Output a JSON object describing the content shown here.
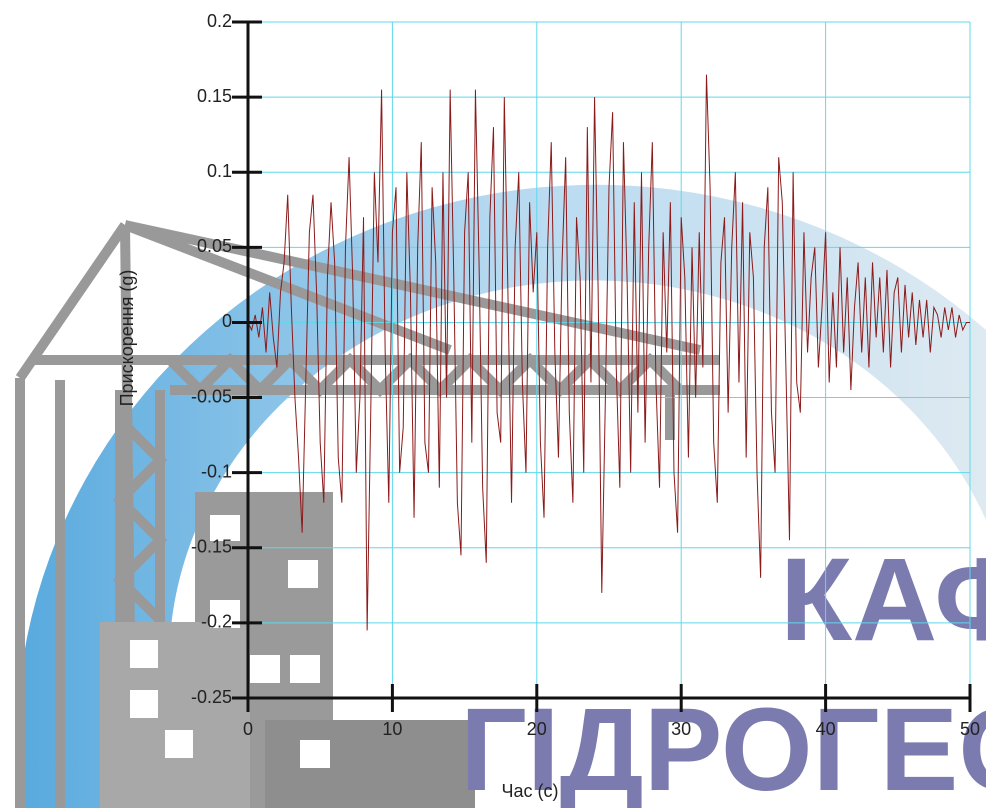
{
  "chart_data": {
    "type": "line",
    "xlabel": "Час (с)",
    "ylabel": "Прискорення (g)",
    "x": [
      0,
      0.25,
      0.5,
      0.75,
      1,
      1.25,
      1.5,
      1.75,
      2,
      2.25,
      2.5,
      2.75,
      3,
      3.25,
      3.5,
      3.75,
      4,
      4.25,
      4.5,
      4.75,
      5,
      5.25,
      5.5,
      5.75,
      6,
      6.25,
      6.5,
      6.75,
      7,
      7.25,
      7.5,
      7.75,
      8,
      8.25,
      8.5,
      8.75,
      9,
      9.25,
      9.5,
      9.75,
      10,
      10.25,
      10.5,
      10.75,
      11,
      11.25,
      11.5,
      11.75,
      12,
      12.25,
      12.5,
      12.75,
      13,
      13.25,
      13.5,
      13.75,
      14,
      14.25,
      14.5,
      14.75,
      15,
      15.25,
      15.5,
      15.75,
      16,
      16.25,
      16.5,
      16.75,
      17,
      17.25,
      17.5,
      17.75,
      18,
      18.25,
      18.5,
      18.75,
      19,
      19.25,
      19.5,
      19.75,
      20,
      20.25,
      20.5,
      20.75,
      21,
      21.25,
      21.5,
      21.75,
      22,
      22.25,
      22.5,
      22.75,
      23,
      23.25,
      23.5,
      23.75,
      24,
      24.25,
      24.5,
      24.75,
      25,
      25.25,
      25.5,
      25.75,
      26,
      26.25,
      26.5,
      26.75,
      27,
      27.25,
      27.5,
      27.75,
      28,
      28.25,
      28.5,
      28.75,
      29,
      29.25,
      29.5,
      29.75,
      30,
      30.25,
      30.5,
      30.75,
      31,
      31.25,
      31.5,
      31.75,
      32,
      32.25,
      32.5,
      32.75,
      33,
      33.25,
      33.5,
      33.75,
      34,
      34.25,
      34.5,
      34.75,
      35,
      35.25,
      35.5,
      35.75,
      36,
      36.25,
      36.5,
      36.75,
      37,
      37.25,
      37.5,
      37.75,
      38,
      38.25,
      38.5,
      38.75,
      39,
      39.25,
      39.5,
      39.75,
      40,
      40.25,
      40.5,
      40.75,
      41,
      41.25,
      41.5,
      41.75,
      42,
      42.25,
      42.5,
      42.75,
      43,
      43.25,
      43.5,
      43.75,
      44,
      44.25,
      44.5,
      44.75,
      45,
      45.25,
      45.5,
      45.75,
      46,
      46.25,
      46.5,
      46.75,
      47,
      47.25,
      47.5,
      47.75,
      48,
      48.25,
      48.5,
      48.75,
      49,
      49.25,
      49.5,
      49.75,
      50
    ],
    "values": [
      0,
      -0.005,
      0.005,
      -0.01,
      0.01,
      -0.02,
      0.02,
      -0.01,
      -0.03,
      0.02,
      0.04,
      0.085,
      0.01,
      -0.05,
      -0.09,
      -0.14,
      -0.04,
      0.06,
      0.085,
      0.02,
      -0.08,
      -0.12,
      0.03,
      0.08,
      0.04,
      -0.09,
      -0.12,
      0.05,
      0.11,
      0.03,
      -0.1,
      -0.05,
      0.07,
      -0.205,
      -0.06,
      0.1,
      0.04,
      0.155,
      -0.02,
      -0.12,
      0.06,
      0.09,
      -0.1,
      -0.07,
      0.1,
      0.02,
      -0.13,
      0.05,
      0.12,
      -0.08,
      -0.1,
      0.09,
      0.04,
      -0.11,
      0.1,
      -0.05,
      0.155,
      0.03,
      -0.12,
      -0.155,
      0.06,
      0.1,
      -0.08,
      0.155,
      0.04,
      -0.11,
      -0.16,
      0.07,
      0.13,
      -0.06,
      -0.08,
      0.15,
      0.02,
      -0.12,
      0.05,
      0.1,
      -0.04,
      -0.1,
      0.08,
      0.02,
      0.06,
      -0.08,
      -0.13,
      0.05,
      0.12,
      -0.02,
      -0.09,
      0.04,
      0.11,
      -0.06,
      -0.12,
      0.07,
      0.03,
      -0.1,
      0.13,
      -0.04,
      0.15,
      0.02,
      -0.18,
      -0.05,
      0.09,
      0.14,
      -0.03,
      -0.11,
      0.12,
      0.03,
      -0.1,
      0.08,
      -0.06,
      0.1,
      -0.08,
      0.05,
      0.12,
      -0.04,
      -0.11,
      0.06,
      -0.02,
      0.08,
      -0.1,
      -0.14,
      0.07,
      0.03,
      -0.09,
      0.05,
      -0.05,
      0.06,
      -0.03,
      0.165,
      0.09,
      -0.08,
      -0.12,
      0.04,
      0.07,
      -0.06,
      0.05,
      0.1,
      -0.04,
      0.08,
      -0.09,
      0.06,
      0.03,
      -0.1,
      -0.17,
      0.05,
      0.09,
      -0.06,
      -0.1,
      0.11,
      0.08,
      -0.03,
      -0.145,
      0.1,
      -0.04,
      -0.06,
      0.06,
      -0.02,
      0.03,
      0.05,
      -0.03,
      0.01,
      0.06,
      -0.04,
      0.02,
      -0.03,
      0.05,
      -0.02,
      0.03,
      -0.045,
      0.01,
      0.04,
      -0.02,
      0.03,
      -0.03,
      0.04,
      -0.01,
      0.03,
      -0.02,
      0.035,
      -0.03,
      0.02,
      0.03,
      -0.02,
      0.025,
      -0.01,
      0.02,
      -0.015,
      0.015,
      -0.01,
      0.015,
      -0.02,
      0.01,
      0.005,
      -0.01,
      0.01,
      -0.005,
      0.01,
      -0.01,
      0.005,
      -0.005,
      0,
      0
    ],
    "color": "#8b1a1a",
    "xlim": [
      0,
      50
    ],
    "xticks": [
      0,
      10,
      20,
      30,
      40,
      50
    ],
    "ylim": [
      -0.25,
      0.2
    ],
    "yticks": [
      0.2,
      0.15,
      0.1,
      0.05,
      0,
      -0.05,
      -0.1,
      -0.15,
      -0.2,
      -0.25
    ],
    "grid": true
  },
  "watermark": {
    "line1": "КАФ",
    "line2": "ГІДРОГЕО"
  }
}
